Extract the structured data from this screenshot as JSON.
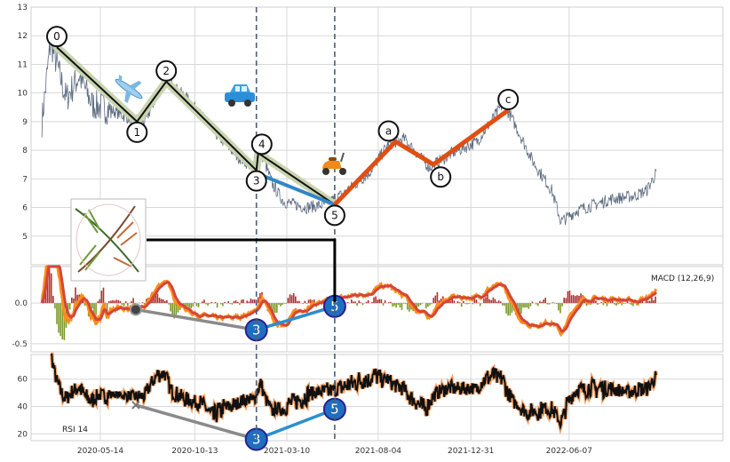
{
  "chart_data": [
    {
      "type": "line",
      "pane": "price",
      "ylim": [
        4,
        13
      ],
      "yticks": [
        5,
        6,
        7,
        8,
        9,
        10,
        11,
        12,
        13
      ],
      "xticks": [
        "2020-05-14",
        "2020-10-13",
        "2021-03-10",
        "2021-08-04",
        "2021-12-31",
        "2022-06-07"
      ],
      "price_anchors": [
        [
          "2020-02-10",
          9.0
        ],
        [
          "2020-02-24",
          11.8
        ],
        [
          "2020-03-20",
          9.8
        ],
        [
          "2020-04-10",
          10.6
        ],
        [
          "2020-05-01",
          9.6
        ],
        [
          "2020-06-01",
          9.4
        ],
        [
          "2020-07-01",
          9.1
        ],
        [
          "2020-07-25",
          9.0
        ],
        [
          "2020-08-25",
          10.5
        ],
        [
          "2020-10-01",
          9.8
        ],
        [
          "2020-11-15",
          8.6
        ],
        [
          "2020-12-20",
          7.8
        ],
        [
          "2021-01-15",
          7.4
        ],
        [
          "2021-01-28",
          7.9
        ],
        [
          "2021-02-15",
          6.8
        ],
        [
          "2021-03-05",
          6.2
        ],
        [
          "2021-04-10",
          6.0
        ],
        [
          "2021-05-10",
          6.1
        ],
        [
          "2021-06-10",
          6.5
        ],
        [
          "2021-07-20",
          7.2
        ],
        [
          "2021-08-20",
          8.2
        ],
        [
          "2021-09-15",
          8.4
        ],
        [
          "2021-10-25",
          7.4
        ],
        [
          "2021-12-01",
          7.9
        ],
        [
          "2022-01-10",
          8.3
        ],
        [
          "2022-02-20",
          9.6
        ],
        [
          "2022-03-05",
          9.2
        ],
        [
          "2022-04-10",
          7.6
        ],
        [
          "2022-05-10",
          6.6
        ],
        [
          "2022-05-25",
          5.5
        ],
        [
          "2022-06-20",
          5.9
        ],
        [
          "2022-08-15",
          6.3
        ],
        [
          "2022-09-20",
          6.4
        ],
        [
          "2022-10-10",
          6.6
        ],
        [
          "2022-10-25",
          7.2
        ]
      ],
      "waves": {
        "impulse": [
          {
            "label": "0",
            "date": "2020-03-05",
            "value": 11.6
          },
          {
            "label": "1",
            "date": "2020-07-12",
            "value": 9.0
          },
          {
            "label": "2",
            "date": "2020-08-28",
            "value": 10.4
          },
          {
            "label": "3",
            "date": "2021-01-20",
            "value": 7.3
          },
          {
            "label": "4",
            "date": "2021-01-23",
            "value": 7.9
          },
          {
            "label": "5",
            "date": "2021-05-26",
            "value": 6.1
          }
        ],
        "corrective": [
          {
            "label": "a",
            "date": "2021-09-01",
            "value": 8.3
          },
          {
            "label": "b",
            "date": "2021-11-01",
            "value": 7.5
          },
          {
            "label": "c",
            "date": "2022-03-01",
            "value": 9.4
          }
        ],
        "wave3_segment": [
          [
            "2021-01-20",
            7.2
          ],
          [
            "2021-05-26",
            6.1
          ]
        ],
        "vertical_markers": [
          "2021-01-20",
          "2021-05-26"
        ]
      }
    },
    {
      "type": "line",
      "pane": "macd",
      "legend": "MACD (12,26,9)",
      "ylim": [
        -0.6,
        0.45
      ],
      "yticks": [
        -0.5,
        0.0
      ],
      "divergence": {
        "points": [
          {
            "label": "",
            "date": "2020-07-10",
            "value": -0.08
          },
          {
            "label": "3",
            "date": "2021-01-20",
            "value": -0.33
          },
          {
            "label": "5",
            "date": "2021-05-26",
            "value": -0.04
          }
        ]
      }
    },
    {
      "type": "line",
      "pane": "rsi",
      "legend": "RSI 14",
      "ylim": [
        15,
        78
      ],
      "yticks": [
        20,
        40,
        60
      ],
      "divergence": {
        "points": [
          {
            "label": "",
            "date": "2020-07-10",
            "value": 41
          },
          {
            "label": "3",
            "date": "2021-01-20",
            "value": 16
          },
          {
            "label": "5",
            "date": "2021-05-26",
            "value": 38
          }
        ]
      }
    }
  ],
  "colors": {
    "price_line": "#5d6b80",
    "impulse_line": "#111111",
    "impulse_halo": "#c9d4b0",
    "corrective_line": "#e04e12",
    "wave3_line": "#2f86c7",
    "marker_line": "#4d5d75",
    "macd_line": "#ff8c1a",
    "signal_line": "#d2473a",
    "hist_pos": "#b03030",
    "hist_neg": "#7a9a2a",
    "rsi_line": "#111111",
    "rsi_halo": "#f4a46a",
    "divergence_line": "#8a8a8a",
    "divergence_blue": "#2a8fd0",
    "badge_fill": "#1f6fc0",
    "badge_edge": "#2a1f8f",
    "grid": "#d8d8d8",
    "frame": "#cfcfcf"
  },
  "icons": [
    "airplane-icon",
    "car-icon",
    "scooter-icon",
    "plant-thumbnail-icon"
  ]
}
